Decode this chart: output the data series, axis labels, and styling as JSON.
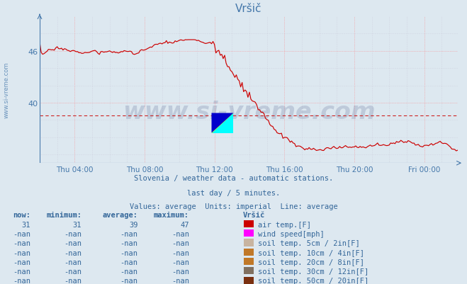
{
  "title": "Vršič",
  "bg_color": "#dde8f0",
  "plot_bg_color": "#dde8f0",
  "line_color": "#cc0000",
  "axis_color": "#4477aa",
  "grid_color_major": "#ffaaaa",
  "grid_color_minor": "#ccccdd",
  "yticks": [
    40,
    46
  ],
  "ymin": 33,
  "ymax": 50,
  "avg_line_y": 38.5,
  "avg_line_color": "#cc2222",
  "watermark": "www.si-vreme.com",
  "watermark_color": "#102060",
  "watermark_alpha": 0.15,
  "subtitle1": "Slovenia / weather data - automatic stations.",
  "subtitle2": "last day / 5 minutes.",
  "subtitle3": "Values: average  Units: imperial  Line: average",
  "subtitle_color": "#336699",
  "table_header": [
    "now:",
    "minimum:",
    "average:",
    "maximum:",
    "Vršič"
  ],
  "table_rows": [
    [
      "31",
      "31",
      "39",
      "47",
      "#cc0000",
      "air temp.[F]"
    ],
    [
      "-nan",
      "-nan",
      "-nan",
      "-nan",
      "#ff00ff",
      "wind speed[mph]"
    ],
    [
      "-nan",
      "-nan",
      "-nan",
      "-nan",
      "#c8b4a0",
      "soil temp. 5cm / 2in[F]"
    ],
    [
      "-nan",
      "-nan",
      "-nan",
      "-nan",
      "#c07828",
      "soil temp. 10cm / 4in[F]"
    ],
    [
      "-nan",
      "-nan",
      "-nan",
      "-nan",
      "#c07828",
      "soil temp. 20cm / 8in[F]"
    ],
    [
      "-nan",
      "-nan",
      "-nan",
      "-nan",
      "#807060",
      "soil temp. 30cm / 12in[F]"
    ],
    [
      "-nan",
      "-nan",
      "-nan",
      "-nan",
      "#7a3010",
      "soil temp. 50cm / 20in[F]"
    ]
  ],
  "xmin": 0,
  "xmax": 287,
  "xtick_positions": [
    24,
    72,
    120,
    168,
    216,
    264
  ],
  "xtick_labels": [
    "Thu 04:00",
    "Thu 08:00",
    "Thu 12:00",
    "Thu 16:00",
    "Thu 20:00",
    "Fri 00:00"
  ],
  "minor_x_positions": [
    0,
    12,
    24,
    36,
    48,
    60,
    72,
    84,
    96,
    108,
    120,
    132,
    144,
    156,
    168,
    180,
    192,
    204,
    216,
    228,
    240,
    252,
    264,
    276,
    287
  ],
  "minor_y_positions": [
    34,
    36,
    38,
    40,
    42,
    44,
    46,
    48
  ]
}
